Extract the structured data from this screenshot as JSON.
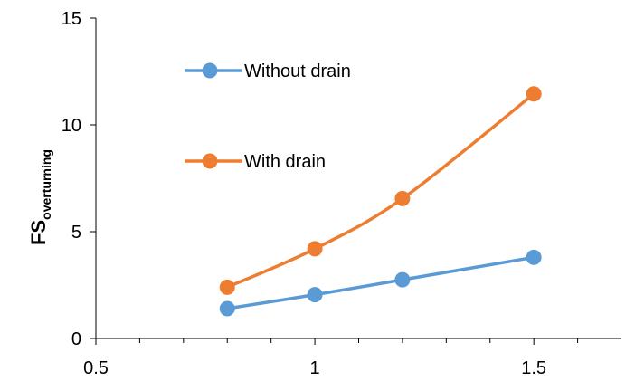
{
  "chart_data": {
    "type": "line",
    "title": "",
    "xlabel": "",
    "ylabel_main": "FS",
    "ylabel_sub": "overturning",
    "xlim": [
      0.5,
      1.7
    ],
    "ylim": [
      0,
      15
    ],
    "x_major_ticks": [
      0.5,
      1,
      1.5
    ],
    "x_major_tick_labels": [
      "0.5",
      "1",
      "1.5"
    ],
    "x_minor_ticks": [
      0.6,
      0.7,
      0.8,
      0.9,
      1.1,
      1.2,
      1.3,
      1.4,
      1.6
    ],
    "y_major_ticks": [
      0,
      5,
      10,
      15
    ],
    "y_major_tick_labels": [
      "0",
      "5",
      "10",
      "15"
    ],
    "grid": false,
    "legend_position": "inside top-left, stacked",
    "series": [
      {
        "name": "Without drain",
        "color": "#5B9BD5",
        "x": [
          0.8,
          1.0,
          1.2,
          1.5
        ],
        "y": [
          1.4,
          2.05,
          2.75,
          3.8
        ]
      },
      {
        "name": "With drain",
        "color": "#ED7D31",
        "x": [
          0.8,
          1.0,
          1.2,
          1.5
        ],
        "y": [
          2.4,
          4.2,
          6.55,
          11.45
        ]
      }
    ]
  }
}
